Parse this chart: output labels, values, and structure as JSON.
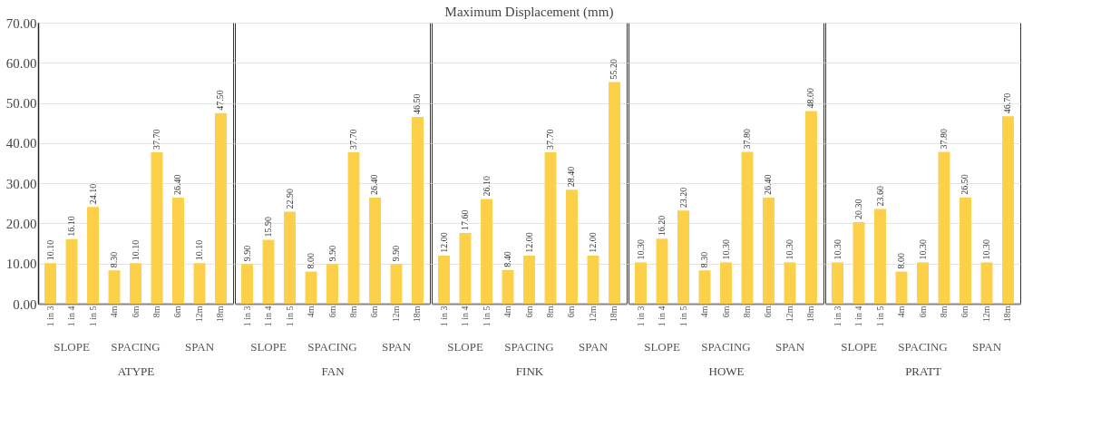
{
  "chart_data": [
    {
      "type": "bar",
      "xlabel": "ATYPE",
      "categories": [
        "1 in 3",
        "1 in 4",
        "1 in 5",
        "4m",
        "6m",
        "8m",
        "6m",
        "12m",
        "18m"
      ],
      "values": [
        10.1,
        16.1,
        24.1,
        8.3,
        10.1,
        37.7,
        26.4,
        10.1,
        47.5
      ],
      "value_labels": [
        "10.10",
        "16.10",
        "24.10",
        "8.30",
        "10.10",
        "37.70",
        "26.40",
        "10.10",
        "47.50"
      ],
      "color": "#fdd04a",
      "ylim": [
        0,
        70
      ],
      "yticks": [
        {
          "value": 0,
          "label": "0.00"
        },
        {
          "value": 10,
          "label": "10.00"
        },
        {
          "value": 20,
          "label": "20.00"
        },
        {
          "value": 30,
          "label": "30.00"
        },
        {
          "value": 40,
          "label": "40.00"
        },
        {
          "value": 50,
          "label": "50.00"
        },
        {
          "value": 60,
          "label": "60.00"
        },
        {
          "value": 70,
          "label": "70.00"
        }
      ],
      "grid": "y",
      "annotations": [
        "SLOPE",
        "SPACING",
        "SPAN"
      ]
    },
    {
      "type": "bar",
      "xlabel": "FAN",
      "categories": [
        "1 in 3",
        "1 in 4",
        "1 in 5",
        "4m",
        "6m",
        "8m",
        "6m",
        "12m",
        "18m"
      ],
      "values": [
        9.9,
        15.9,
        22.9,
        8.0,
        9.9,
        37.7,
        26.4,
        9.9,
        46.5
      ],
      "value_labels": [
        "9.90",
        "15.90",
        "22.90",
        "8.00",
        "9.90",
        "37.70",
        "26.40",
        "9.90",
        "46.50"
      ],
      "color": "#fdd04a",
      "ylim": [
        0,
        70
      ],
      "yticks": [
        0,
        10,
        20,
        30,
        40,
        50,
        60,
        70
      ],
      "grid": "y",
      "tick_labels": "x",
      "annotations": [
        "SLOPE",
        "SPACING",
        "SPAN"
      ]
    },
    {
      "type": "bar",
      "title": "Maximum Displacement (mm)",
      "xlabel": "FINK",
      "categories": [
        "1 in 3",
        "1 in 4",
        "1 in 5",
        "4m",
        "6m",
        "8m",
        "6m",
        "12m",
        "18m"
      ],
      "values": [
        12.0,
        17.6,
        26.1,
        8.4,
        12.0,
        37.7,
        28.4,
        12.0,
        55.2
      ],
      "value_labels": [
        "12.00",
        "17.60",
        "26.10",
        "8.40",
        "12.00",
        "37.70",
        "28.40",
        "12.00",
        "55.20"
      ],
      "color": "#fdd04a",
      "ylim": [
        0,
        70
      ],
      "yticks": [
        0,
        10,
        20,
        30,
        40,
        50,
        60,
        70
      ],
      "grid": "y",
      "tick_labels": "x",
      "annotations": [
        "SLOPE",
        "SPACING",
        "SPAN"
      ]
    },
    {
      "type": "bar",
      "xlabel": "HOWE",
      "categories": [
        "1 in 3",
        "1 in 4",
        "1 in 5",
        "4m",
        "6m",
        "8m",
        "6m",
        "12m",
        "18m"
      ],
      "values": [
        10.3,
        16.2,
        23.2,
        8.3,
        10.3,
        37.8,
        26.4,
        10.3,
        48.0
      ],
      "value_labels": [
        "10.30",
        "16.20",
        "23.20",
        "8.30",
        "10.30",
        "37.80",
        "26.40",
        "10.30",
        "48.00"
      ],
      "color": "#fdd04a",
      "ylim": [
        0,
        70
      ],
      "yticks": [
        0,
        10,
        20,
        30,
        40,
        50,
        60,
        70
      ],
      "grid": "y",
      "tick_labels": "x",
      "annotations": [
        "SLOPE",
        "SPACING",
        "SPAN"
      ]
    },
    {
      "type": "bar",
      "xlabel": "PRATT",
      "categories": [
        "1 in 3",
        "1 in 4",
        "1 in 5",
        "4m",
        "6m",
        "8m",
        "6m",
        "12m",
        "18m"
      ],
      "values": [
        10.3,
        20.3,
        23.6,
        8.0,
        10.3,
        37.8,
        26.5,
        10.3,
        46.7
      ],
      "value_labels": [
        "10.30",
        "20.30",
        "23.60",
        "8.00",
        "10.30",
        "37.80",
        "26.50",
        "10.30",
        "46.70"
      ],
      "color": "#fdd04a",
      "ylim": [
        0,
        70
      ],
      "yticks": [
        0,
        10,
        20,
        30,
        40,
        50,
        60,
        70
      ],
      "grid": "y",
      "tick_labels": "x",
      "annotations": [
        "SLOPE",
        "SPACING",
        "SPAN"
      ]
    }
  ]
}
